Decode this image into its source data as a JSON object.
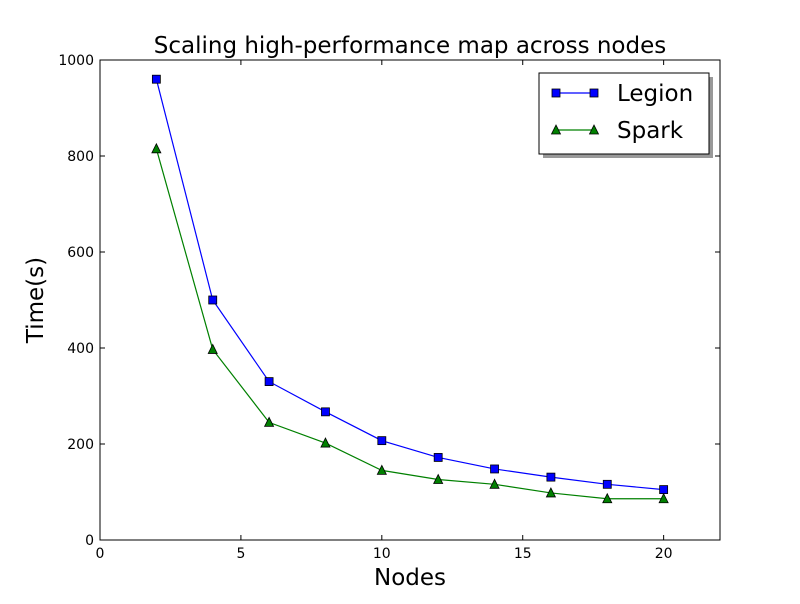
{
  "chart_data": {
    "type": "line",
    "title": "Scaling high-performance map across nodes",
    "xlabel": "Nodes",
    "ylabel": "Time(s)",
    "xlim": [
      0,
      22
    ],
    "ylim": [
      0,
      1000
    ],
    "x_ticks": [
      0,
      5,
      10,
      15,
      20
    ],
    "y_ticks": [
      0,
      200,
      400,
      600,
      800,
      1000
    ],
    "grid": false,
    "legend_position": "top-right",
    "x": [
      2,
      4,
      6,
      8,
      10,
      12,
      14,
      16,
      18,
      20
    ],
    "series": [
      {
        "name": "Legion",
        "color": "#0000ff",
        "marker": "square",
        "values": [
          960,
          500,
          330,
          267,
          207,
          172,
          148,
          131,
          116,
          105
        ]
      },
      {
        "name": "Spark",
        "color": "#008000",
        "marker": "triangle",
        "values": [
          815,
          397,
          245,
          202,
          145,
          126,
          116,
          98,
          86,
          86
        ]
      }
    ]
  }
}
